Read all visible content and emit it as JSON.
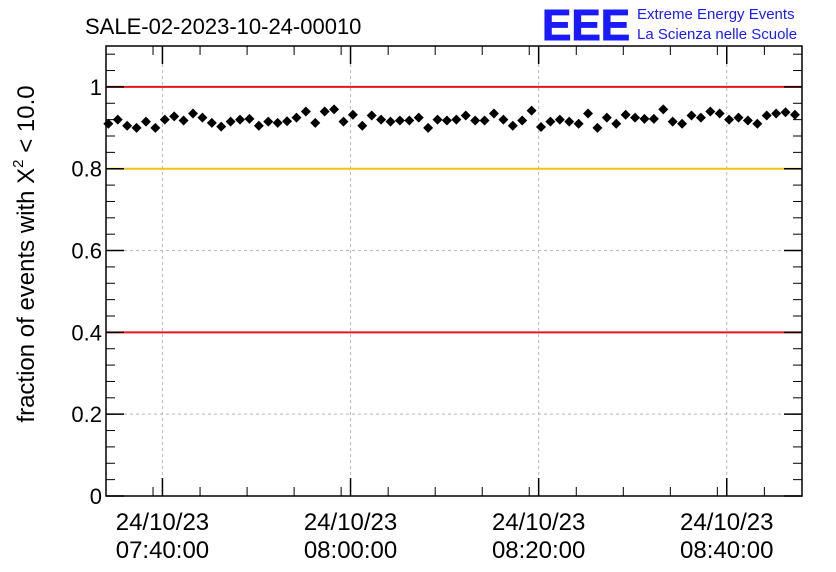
{
  "chart_data": {
    "type": "scatter",
    "title": "SALE-02-2023-10-24-00010",
    "ylabel_main": "fraction of events with X",
    "ylabel_sup": "2",
    "ylabel_tail": " < 10.0",
    "ylim": [
      0,
      1.1
    ],
    "yticks": [
      {
        "value": 0,
        "label": "0"
      },
      {
        "value": 0.2,
        "label": "0.2"
      },
      {
        "value": 0.4,
        "label": "0.4"
      },
      {
        "value": 0.6,
        "label": "0.6"
      },
      {
        "value": 0.8,
        "label": "0.8"
      },
      {
        "value": 1,
        "label": "1"
      }
    ],
    "xlim": [
      "07:34:00",
      "08:48:00"
    ],
    "xticks": [
      {
        "time": "07:40:00",
        "date": "24/10/23"
      },
      {
        "time": "08:00:00",
        "date": "24/10/23"
      },
      {
        "time": "08:20:00",
        "date": "24/10/23"
      },
      {
        "time": "08:40:00",
        "date": "24/10/23"
      }
    ],
    "reference_lines": [
      {
        "y": 1.0,
        "color": "#e8161a"
      },
      {
        "y": 0.8,
        "color": "#f5c116"
      },
      {
        "y": 0.4,
        "color": "#e8161a"
      }
    ],
    "grid": true,
    "marker_color": "#000000",
    "x": [
      "07:34:15",
      "07:35:15",
      "07:36:15",
      "07:37:15",
      "07:38:15",
      "07:39:15",
      "07:40:15",
      "07:41:15",
      "07:42:15",
      "07:43:15",
      "07:44:15",
      "07:45:15",
      "07:46:15",
      "07:47:15",
      "07:48:15",
      "07:49:15",
      "07:50:15",
      "07:51:15",
      "07:52:15",
      "07:53:15",
      "07:54:15",
      "07:55:15",
      "07:56:15",
      "07:57:15",
      "07:58:15",
      "07:59:15",
      "08:00:15",
      "08:01:15",
      "08:02:15",
      "08:03:15",
      "08:04:15",
      "08:05:15",
      "08:06:15",
      "08:07:15",
      "08:08:15",
      "08:09:15",
      "08:10:15",
      "08:11:15",
      "08:12:15",
      "08:13:15",
      "08:14:15",
      "08:15:15",
      "08:16:15",
      "08:17:15",
      "08:18:15",
      "08:19:15",
      "08:20:15",
      "08:21:15",
      "08:22:15",
      "08:23:15",
      "08:24:15",
      "08:25:15",
      "08:26:15",
      "08:27:15",
      "08:28:15",
      "08:29:15",
      "08:30:15",
      "08:31:15",
      "08:32:15",
      "08:33:15",
      "08:34:15",
      "08:35:15",
      "08:36:15",
      "08:37:15",
      "08:38:15",
      "08:39:15",
      "08:40:15",
      "08:41:15",
      "08:42:15",
      "08:43:15",
      "08:44:15",
      "08:45:15",
      "08:46:15",
      "08:47:15"
    ],
    "y": [
      0.91,
      0.92,
      0.905,
      0.9,
      0.915,
      0.9,
      0.92,
      0.928,
      0.918,
      0.935,
      0.925,
      0.912,
      0.903,
      0.915,
      0.92,
      0.922,
      0.905,
      0.915,
      0.912,
      0.916,
      0.925,
      0.94,
      0.912,
      0.94,
      0.945,
      0.915,
      0.932,
      0.905,
      0.93,
      0.92,
      0.915,
      0.918,
      0.918,
      0.925,
      0.9,
      0.92,
      0.918,
      0.92,
      0.93,
      0.918,
      0.918,
      0.935,
      0.92,
      0.905,
      0.918,
      0.942,
      0.902,
      0.915,
      0.92,
      0.915,
      0.91,
      0.935,
      0.9,
      0.925,
      0.91,
      0.932,
      0.925,
      0.922,
      0.922,
      0.945,
      0.915,
      0.91,
      0.93,
      0.925,
      0.94,
      0.935,
      0.92,
      0.925,
      0.918,
      0.91,
      0.93,
      0.935,
      0.938,
      0.932
    ]
  },
  "logo": {
    "mark": "EEE",
    "line1": "Extreme Energy Events",
    "line2": "La Scienza nelle Scuole",
    "color": "#1a1aff"
  }
}
